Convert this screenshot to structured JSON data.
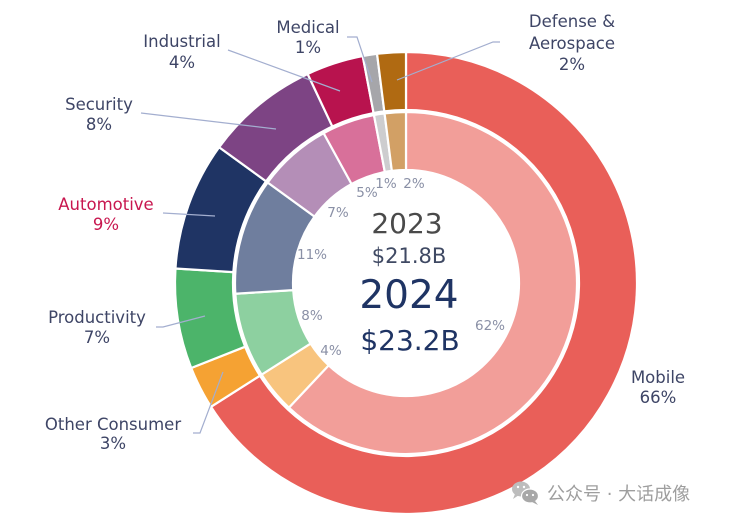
{
  "chart_data": {
    "type": "pie",
    "subtype": "nested-donut",
    "title": "",
    "start_angle": "top",
    "direction": "clockwise",
    "legend": "none (direct labels)",
    "categories": [
      "Mobile",
      "Other Consumer",
      "Productivity",
      "Automotive",
      "Security",
      "Industrial",
      "Medical",
      "Defense & Aerospace"
    ],
    "category_display": [
      [
        "Mobile"
      ],
      [
        "Other Consumer"
      ],
      [
        "Productivity"
      ],
      [
        "Automotive"
      ],
      [
        "Security"
      ],
      [
        "Industrial"
      ],
      [
        "Medical"
      ],
      [
        "Defense &",
        "Aerospace"
      ]
    ],
    "series": [
      {
        "name": "2024",
        "ring": "outer",
        "total": "$23.2B",
        "values": [
          66,
          3,
          7,
          9,
          8,
          4,
          1,
          2
        ],
        "labels": [
          "66%",
          "3%",
          "7%",
          "9%",
          "8%",
          "4%",
          "1%",
          "2%"
        ],
        "colors": [
          "#E95F59",
          "#F5A233",
          "#4CB46A",
          "#1F3464",
          "#7D4484",
          "#B8134E",
          "#A6A6AA",
          "#B06A12"
        ]
      },
      {
        "name": "2023",
        "ring": "inner",
        "total": "$21.8B",
        "values": [
          62,
          4,
          8,
          11,
          7,
          5,
          1,
          2
        ],
        "labels": [
          "62%",
          "4%",
          "8%",
          "11%",
          "7%",
          "5%",
          "1%",
          "2%"
        ],
        "colors": [
          "#F29E99",
          "#F8C47E",
          "#8DD0A0",
          "#6F7E9E",
          "#B48EB7",
          "#D8709A",
          "#CDCDCF",
          "#D2A065"
        ]
      }
    ],
    "center_text": {
      "year_2023": "2023",
      "total_2023": "$21.8B",
      "year_2024": "2024",
      "total_2024": "$23.2B"
    },
    "highlighted_category": "Automotive",
    "highlight_color": "#C8174F",
    "label_color": "#3E4566"
  },
  "watermark": {
    "icon": "wechat-icon",
    "text": "公众号 · 大话成像"
  }
}
